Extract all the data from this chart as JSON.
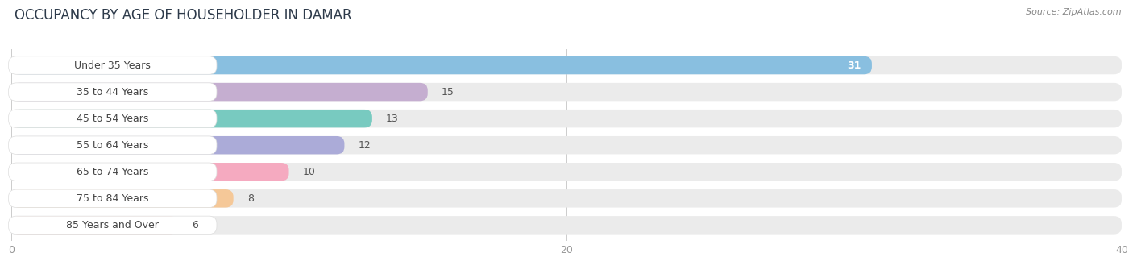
{
  "title": "OCCUPANCY BY AGE OF HOUSEHOLDER IN DAMAR",
  "source": "Source: ZipAtlas.com",
  "categories": [
    "Under 35 Years",
    "35 to 44 Years",
    "45 to 54 Years",
    "55 to 64 Years",
    "65 to 74 Years",
    "75 to 84 Years",
    "85 Years and Over"
  ],
  "values": [
    31,
    15,
    13,
    12,
    10,
    8,
    6
  ],
  "bar_colors": [
    "#89bfe0",
    "#c5aed0",
    "#78cac0",
    "#ababd8",
    "#f5aac0",
    "#f5c898",
    "#e8a898"
  ],
  "xlim": [
    0,
    40
  ],
  "xticks": [
    0,
    20,
    40
  ],
  "background_color": "#ffffff",
  "bar_bg_color": "#ebebeb",
  "title_fontsize": 12,
  "label_fontsize": 9,
  "value_fontsize": 9,
  "fig_width": 14.06,
  "fig_height": 3.4
}
